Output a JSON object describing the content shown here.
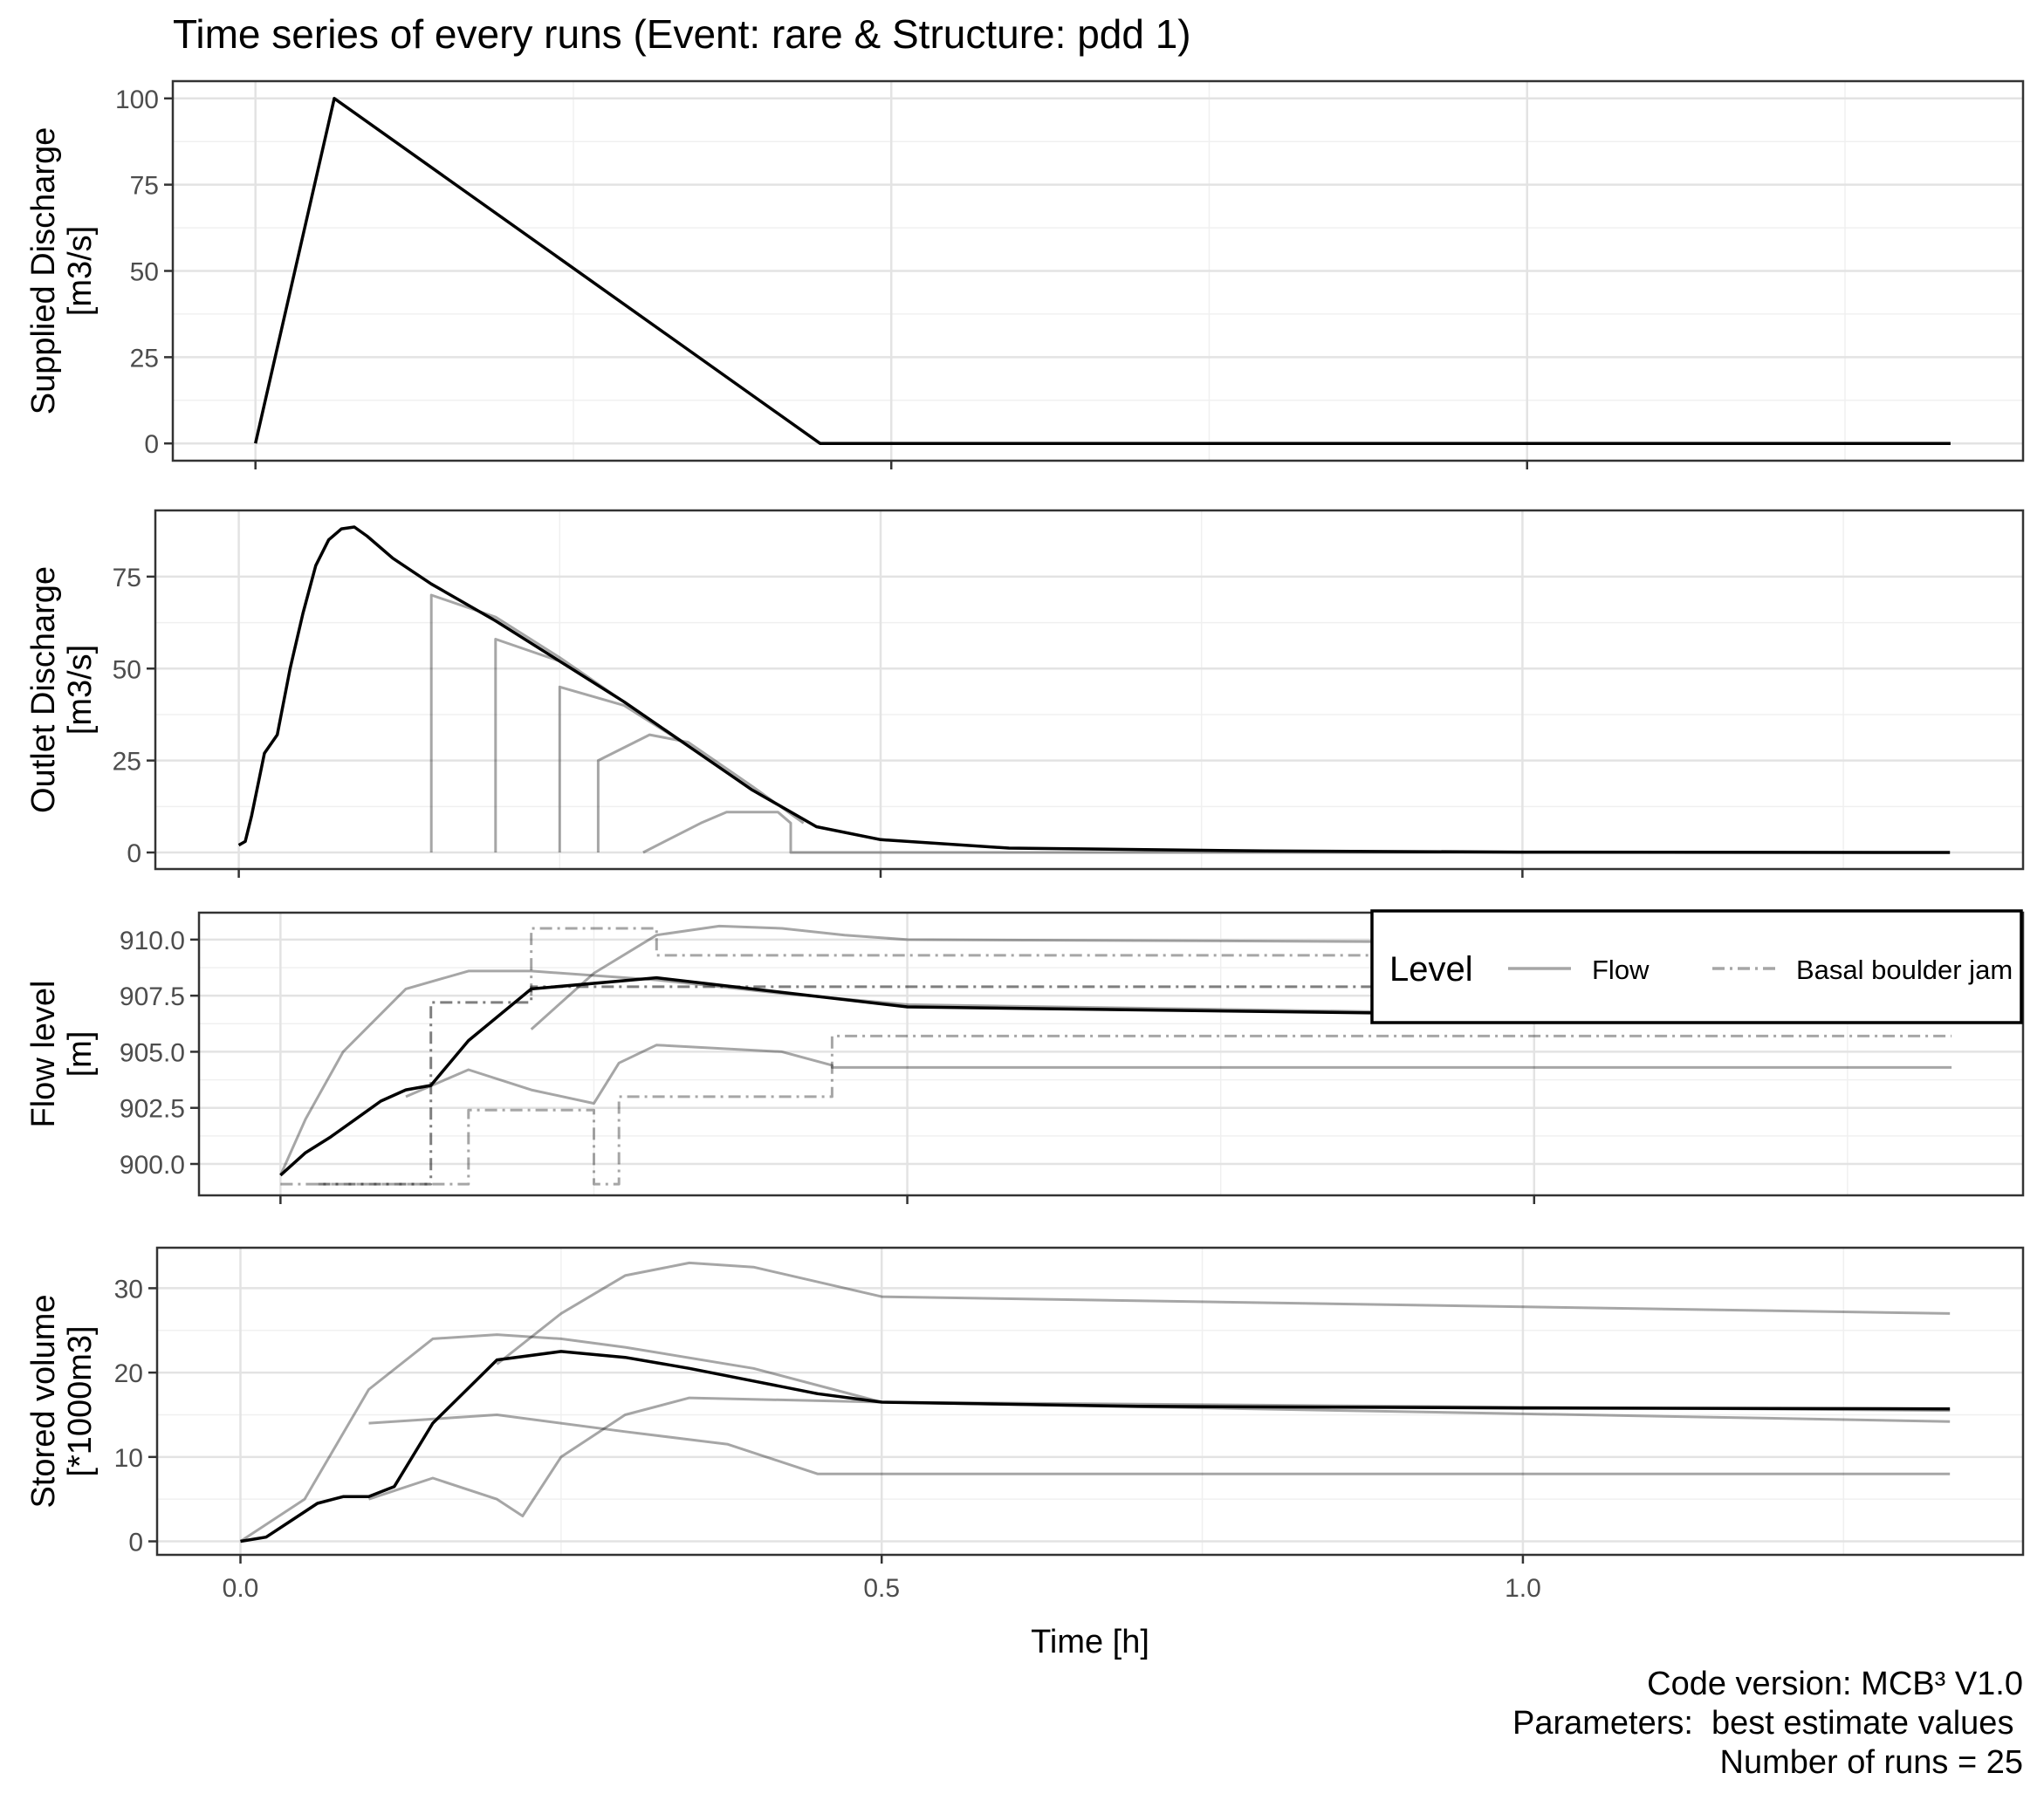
{
  "title": "Time series of every runs (Event: rare & Structure: pdd 1)",
  "caption": {
    "code_version": "Code version: MCB³ V1.0",
    "parameters": "Parameters:  best estimate values ",
    "runs": "Number of runs = 25"
  },
  "legend": {
    "title": "Level",
    "items": [
      {
        "label": "Flow",
        "linetype": "solid"
      },
      {
        "label": "Basal boulder jam",
        "linetype": "dashdot"
      }
    ]
  },
  "chart_data": [
    {
      "type": "line",
      "ylabel": [
        "Supplied Discharge",
        "[m3/s]"
      ],
      "xlabel": "",
      "x_ticks": [
        0.0,
        0.5,
        1.0
      ],
      "xlim": [
        -0.065,
        1.39
      ],
      "ylim": [
        -5,
        105
      ],
      "y_ticks": [
        0,
        25,
        50,
        75,
        100
      ],
      "y_tick_labels": [
        "0",
        "25",
        "50",
        "75",
        "100"
      ],
      "show_x_tick_labels": false,
      "series": [
        {
          "x": [
            0.0,
            0.062,
            0.444,
            1.333
          ],
          "y": [
            0,
            100,
            0,
            0
          ],
          "color": "#000000",
          "opacity": 1,
          "width": 3.5
        }
      ]
    },
    {
      "type": "line",
      "ylabel": [
        "Outlet Discharge",
        "[m3/s]"
      ],
      "xlabel": "",
      "x_ticks": [
        0.0,
        0.5,
        1.0
      ],
      "xlim": [
        -0.065,
        1.39
      ],
      "ylim": [
        -4.5,
        93
      ],
      "y_ticks": [
        0,
        25,
        50,
        75
      ],
      "y_tick_labels": [
        "0",
        "25",
        "50",
        "75"
      ],
      "show_x_tick_labels": false,
      "series": [
        {
          "x": [
            0.0,
            0.005,
            0.01,
            0.02,
            0.03,
            0.04,
            0.05,
            0.06,
            0.07,
            0.08,
            0.09,
            0.1,
            0.12,
            0.15,
            0.2,
            0.25,
            0.3,
            0.35,
            0.4,
            0.45,
            0.5,
            0.6,
            0.8,
            1.0,
            1.333
          ],
          "y": [
            2,
            3,
            10,
            27,
            32,
            50,
            65,
            78,
            85,
            88,
            88.5,
            86,
            80,
            73,
            63,
            52,
            41,
            29,
            17,
            7,
            3.5,
            1.2,
            0.4,
            0.1,
            0
          ],
          "color": "#000000",
          "opacity": 1,
          "width": 3.5
        },
        {
          "x": [
            0.15,
            0.15,
            0.2,
            0.25,
            0.3,
            0.35,
            0.4,
            0.45,
            0.5
          ],
          "y": [
            0,
            70,
            64,
            53,
            41,
            29,
            17,
            7,
            3.5
          ],
          "color": "#000000",
          "opacity": 0.35,
          "width": 3
        },
        {
          "x": [
            0.2,
            0.2,
            0.25,
            0.3,
            0.35,
            0.4,
            0.45,
            0.5
          ],
          "y": [
            0,
            58,
            52,
            41,
            29,
            17,
            7,
            3.5
          ],
          "color": "#000000",
          "opacity": 0.35,
          "width": 3
        },
        {
          "x": [
            0.25,
            0.25,
            0.3,
            0.35,
            0.4,
            0.45
          ],
          "y": [
            0,
            45,
            40,
            29,
            17,
            7
          ],
          "color": "#000000",
          "opacity": 0.35,
          "width": 3
        },
        {
          "x": [
            0.28,
            0.28,
            0.32,
            0.35,
            0.4,
            0.44
          ],
          "y": [
            0,
            25,
            32,
            30,
            18,
            8
          ],
          "color": "#000000",
          "opacity": 0.35,
          "width": 3
        },
        {
          "x": [
            0.315,
            0.36,
            0.38,
            0.42,
            0.43,
            0.43,
            1.333
          ],
          "y": [
            0,
            8,
            11,
            11,
            8,
            0,
            0
          ],
          "color": "#000000",
          "opacity": 0.35,
          "width": 3
        }
      ]
    },
    {
      "type": "line",
      "ylabel": [
        "Flow level",
        "[m]"
      ],
      "xlabel": "",
      "x_ticks": [
        0.0,
        0.5,
        1.0
      ],
      "xlim": [
        -0.065,
        1.39
      ],
      "ylim": [
        898.6,
        911.2
      ],
      "y_ticks": [
        900.0,
        902.5,
        905.0,
        907.5,
        910.0
      ],
      "y_tick_labels": [
        "900.0",
        "902.5",
        "905.0",
        "907.5",
        "910.0"
      ],
      "show_x_tick_labels": false,
      "series": [
        {
          "x": [
            0.0,
            0.02,
            0.04,
            0.06,
            0.08,
            0.1,
            0.12,
            0.15,
            0.2,
            0.3,
            0.5,
            1.333
          ],
          "y": [
            899.5,
            900.5,
            901.2,
            902.0,
            902.8,
            903.3,
            903.5,
            905.5,
            907.8,
            908.3,
            907.0,
            906.4
          ],
          "color": "#000000",
          "opacity": 1,
          "width": 3.5
        },
        {
          "x": [
            0.0,
            0.02,
            0.05,
            0.1,
            0.15,
            0.2,
            0.3,
            0.4,
            0.5,
            1.333
          ],
          "y": [
            899.5,
            902.0,
            905.0,
            907.8,
            908.6,
            908.6,
            908.2,
            907.6,
            907.1,
            906.4
          ],
          "color": "#000000",
          "opacity": 0.35,
          "width": 3
        },
        {
          "x": [
            0.2,
            0.25,
            0.3,
            0.35,
            0.4,
            0.45,
            0.5,
            1.333
          ],
          "y": [
            906.0,
            908.5,
            910.2,
            910.6,
            910.5,
            910.2,
            910.0,
            909.8
          ],
          "color": "#000000",
          "opacity": 0.35,
          "width": 3
        },
        {
          "x": [
            0.1,
            0.15,
            0.2,
            0.25,
            0.27,
            0.3,
            0.4,
            0.44,
            0.44,
            1.333
          ],
          "y": [
            903.0,
            904.2,
            903.3,
            902.7,
            904.5,
            905.3,
            905.0,
            904.4,
            904.3,
            904.3
          ],
          "color": "#000000",
          "opacity": 0.35,
          "width": 3
        },
        {
          "x": [
            0.0,
            0.15,
            0.15,
            0.25,
            0.25,
            0.27,
            0.27,
            0.44,
            0.44,
            1.333
          ],
          "y": [
            899.1,
            899.1,
            902.4,
            902.4,
            899.1,
            899.1,
            903.0,
            903.0,
            905.7,
            905.7
          ],
          "color": "#000000",
          "opacity": 0.35,
          "width": 3,
          "dash": "dashdot"
        },
        {
          "x": [
            0.2,
            0.2,
            0.3,
            0.3,
            1.333
          ],
          "y": [
            907.5,
            910.5,
            910.5,
            909.3,
            909.3
          ],
          "color": "#000000",
          "opacity": 0.35,
          "width": 3,
          "dash": "dashdot"
        },
        {
          "x": [
            0.03,
            0.12,
            0.12,
            0.2,
            0.2,
            1.333
          ],
          "y": [
            899.1,
            899.1,
            907.2,
            907.2,
            907.9,
            907.9
          ],
          "color": "#000000",
          "opacity": 0.5,
          "width": 3,
          "dash": "dashdot"
        }
      ]
    },
    {
      "type": "line",
      "ylabel": [
        "Stored volume",
        "[*1000m3]"
      ],
      "xlabel": "Time [h]",
      "x_ticks": [
        0.0,
        0.5,
        1.0
      ],
      "x_tick_labels": [
        "0.0",
        "0.5",
        "1.0"
      ],
      "xlim": [
        -0.065,
        1.39
      ],
      "ylim": [
        -1.6,
        34.8
      ],
      "y_ticks": [
        0,
        10,
        20,
        30
      ],
      "y_tick_labels": [
        "0",
        "10",
        "20",
        "30"
      ],
      "show_x_tick_labels": true,
      "series": [
        {
          "x": [
            0.0,
            0.02,
            0.04,
            0.06,
            0.08,
            0.1,
            0.12,
            0.15,
            0.2,
            0.25,
            0.3,
            0.35,
            0.4,
            0.45,
            0.5,
            0.7,
            1.0,
            1.333
          ],
          "y": [
            0,
            0.5,
            2.5,
            4.5,
            5.3,
            5.3,
            6.5,
            14,
            21.5,
            22.5,
            21.8,
            20.5,
            19,
            17.5,
            16.5,
            16,
            15.8,
            15.7
          ],
          "color": "#000000",
          "opacity": 1,
          "width": 3.5
        },
        {
          "x": [
            0.0,
            0.05,
            0.1,
            0.15,
            0.2,
            0.25,
            0.3,
            0.4,
            0.5,
            1.333
          ],
          "y": [
            0,
            5,
            18,
            24,
            24.5,
            24,
            23,
            20.5,
            16.5,
            15.5
          ],
          "color": "#000000",
          "opacity": 0.35,
          "width": 3
        },
        {
          "x": [
            0.2,
            0.25,
            0.3,
            0.35,
            0.4,
            0.5,
            1.333
          ],
          "y": [
            21,
            27,
            31.5,
            33,
            32.5,
            29,
            27
          ],
          "color": "#000000",
          "opacity": 0.35,
          "width": 3
        },
        {
          "x": [
            0.1,
            0.15,
            0.2,
            0.22,
            0.25,
            0.3,
            0.35,
            0.5,
            1.333
          ],
          "y": [
            5,
            7.5,
            5,
            3,
            10,
            15,
            17,
            16.5,
            14.2
          ],
          "color": "#000000",
          "opacity": 0.35,
          "width": 3
        },
        {
          "x": [
            0.1,
            0.2,
            0.3,
            0.38,
            0.45,
            0.45,
            1.333
          ],
          "y": [
            14,
            15,
            13,
            11.5,
            8,
            8,
            8
          ],
          "color": "#000000",
          "opacity": 0.35,
          "width": 3
        }
      ]
    }
  ]
}
